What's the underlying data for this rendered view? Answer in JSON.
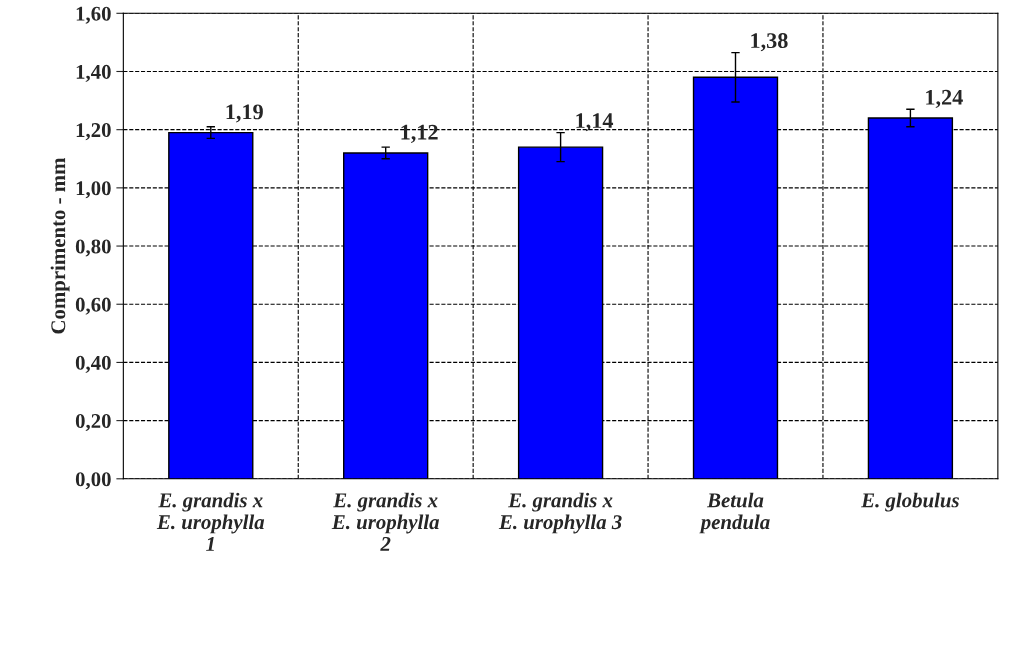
{
  "chart_data": {
    "type": "bar",
    "ylabel": "Comprimento - mm",
    "categories": [
      "E. grandis x\nE. urophylla\n1",
      "E. grandis x\nE. urophylla\n2",
      "E. grandis x\nE. urophylla 3",
      "Betula\npendula",
      "E. globulus"
    ],
    "values": [
      1.19,
      1.12,
      1.14,
      1.38,
      1.24
    ],
    "errors": [
      0.02,
      0.02,
      0.05,
      0.085,
      0.03
    ],
    "color": "#0000ff",
    "value_labels": [
      "1,19",
      "1,12",
      "1,14",
      "1,38",
      "1,24"
    ],
    "ylim": [
      0,
      1.6
    ],
    "yticks": [
      {
        "value": 0,
        "label": "0,00"
      },
      {
        "value": 0.2,
        "label": "0,20"
      },
      {
        "value": 0.4,
        "label": "0,40"
      },
      {
        "value": 0.6,
        "label": "0,60"
      },
      {
        "value": 0.8,
        "label": "0,80"
      },
      {
        "value": 1.0,
        "label": "1,00"
      },
      {
        "value": 1.2,
        "label": "1,20"
      },
      {
        "value": 1.4,
        "label": "1,40"
      },
      {
        "value": 1.6,
        "label": "1,60"
      }
    ],
    "grid": true
  }
}
